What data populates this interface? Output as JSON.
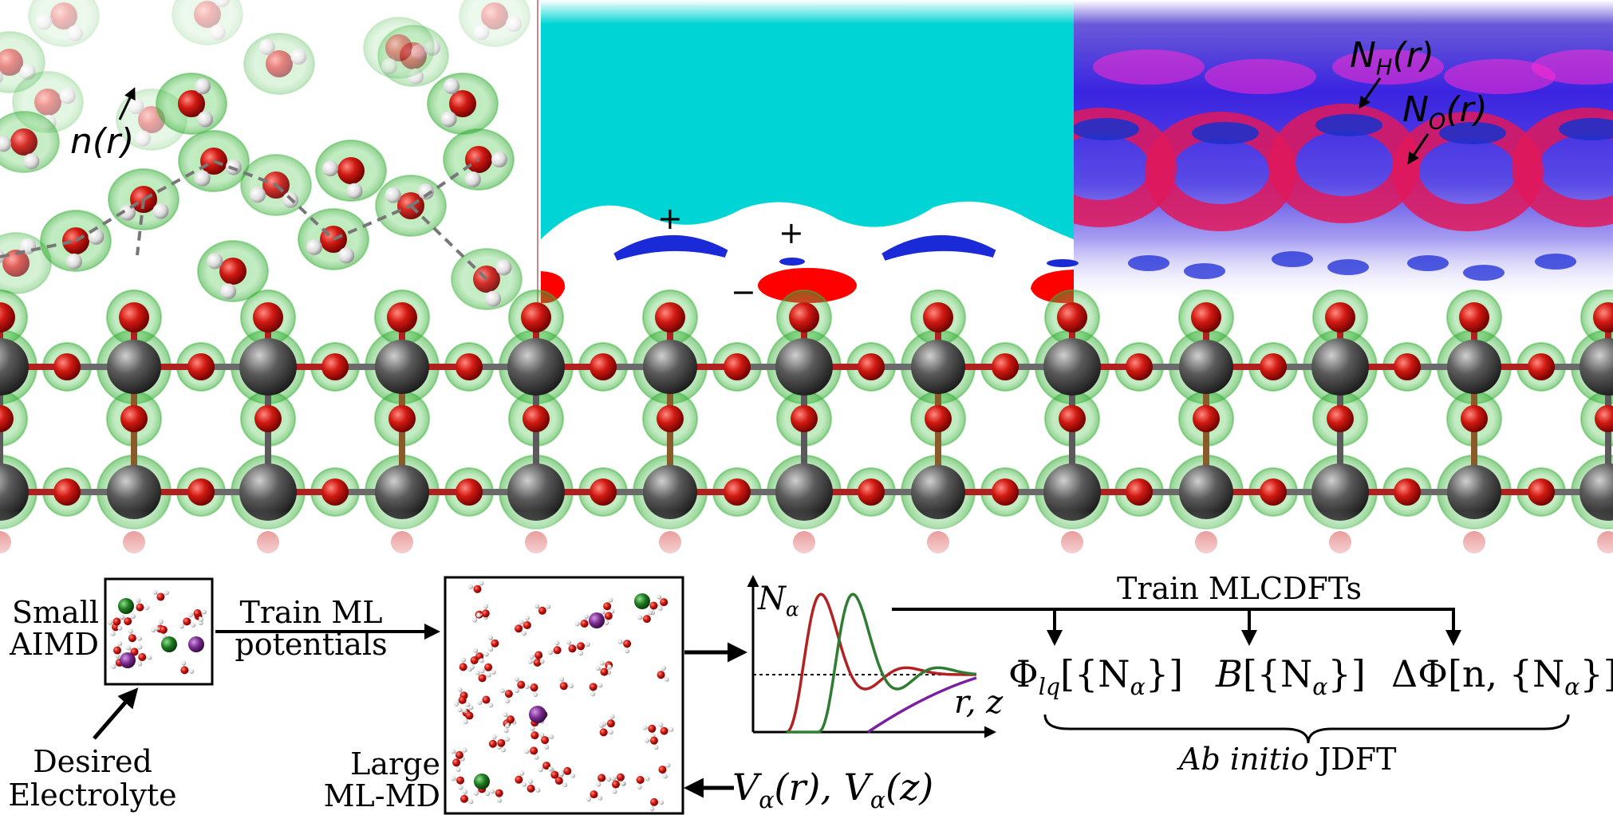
{
  "panel_labels": {
    "density_label_n": "n",
    "density_label_r": "(r)",
    "nh_label_main": "N",
    "nh_label_sub": "H",
    "nh_label_r": "(r)",
    "no_label_main": "N",
    "no_label_sub": "O",
    "no_label_r": "(r)",
    "plus_sign": "+",
    "minus_sign": "−"
  },
  "workflow": {
    "small_aimd_line1": "Small",
    "small_aimd_line2": "AIMD",
    "desired_line1": "Desired",
    "desired_line2": "Electrolyte",
    "train_ml_line1": "Train ML",
    "train_ml_line2": "potentials",
    "large_line1": "Large",
    "large_line2": "ML-MD",
    "train_mlcdft": "Train MLCDFTs",
    "n_alpha_N": "N",
    "n_alpha_sub": "α",
    "axis_rz": "r, z",
    "functional_phi": "Φ",
    "functional_phi_sub": "lq",
    "functional_phi_arg": "[{N",
    "functional_phi_arg_end": "}]",
    "functional_b": "B",
    "functional_b_arg": "[{N",
    "functional_b_arg_end": "}]",
    "functional_dphi": "ΔΦ",
    "functional_dphi_arg": "[n, {N",
    "functional_dphi_arg_end": "}]",
    "jdft_italic": "Ab initio",
    "jdft_rest": " JDFT",
    "potentials_v": "V",
    "potentials_sub": "α",
    "potentials_r": "(r), V",
    "potentials_z": "(z)"
  },
  "colors": {
    "oxygen": "#d11a12",
    "hydrogen": "#e8e8e8",
    "metal": "#4a4a4a",
    "density_green": "#5cd65c",
    "solvent_cyan": "#00d4d4",
    "charge_blue": "#1a2ad6",
    "charge_red": "#ff0000",
    "na_purple": "#7a2a8f",
    "cl_green": "#1e7a1e",
    "curve_red": "#b22222",
    "curve_green": "#2e7d32",
    "curve_purple": "#7b1fa2"
  }
}
